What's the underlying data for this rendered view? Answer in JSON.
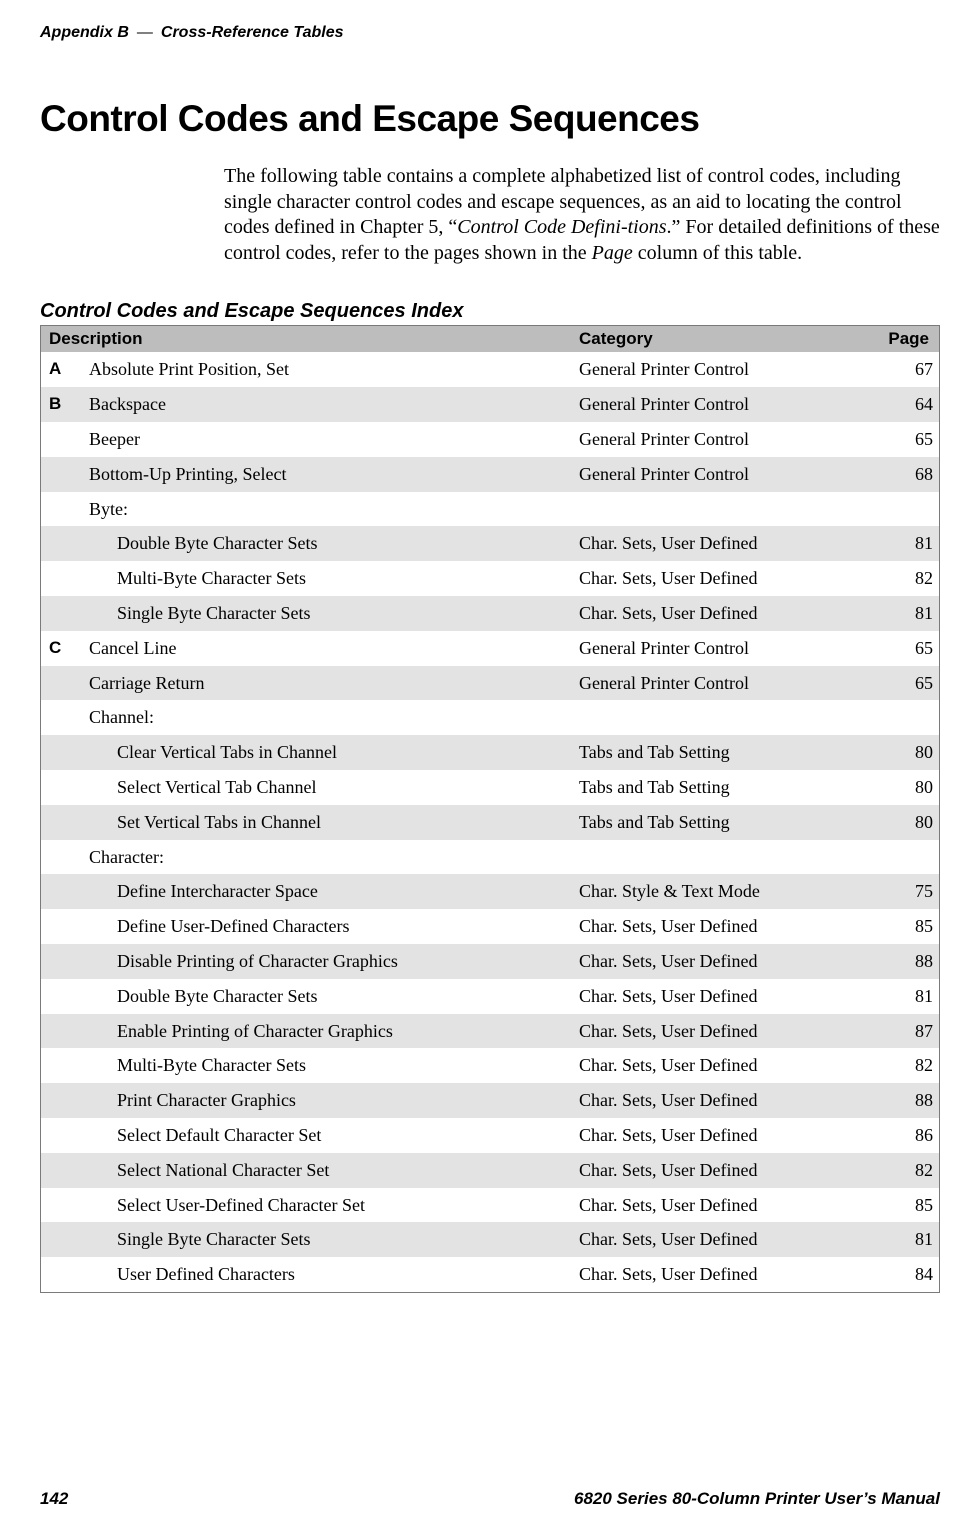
{
  "running_head": {
    "left": "Appendix  B",
    "right": "Cross-Reference Tables",
    "dash": "—"
  },
  "section_title": "Control Codes and Escape Sequences",
  "body_paragraph": {
    "pre": "The following table contains a complete alphabetized list of control codes, including single character control codes and escape sequences, as an aid to locating the control codes defined in Chapter 5, “",
    "ital1": "Control Code Defini-tions",
    "mid": ".” For detailed definitions of these control codes, refer to the pages shown in the ",
    "ital2": "Page",
    "post": " column of this table."
  },
  "table_title": "Control Codes and Escape Sequences Index",
  "headers": {
    "description": "Description",
    "category": "Category",
    "page": "Page"
  },
  "rows": [
    {
      "letter": "A",
      "desc": "Absolute Print Position, Set",
      "cat": "General Printer Control",
      "page": "67",
      "shaded": false,
      "indent": 0
    },
    {
      "letter": "B",
      "desc": "Backspace",
      "cat": "General Printer Control",
      "page": "64",
      "shaded": true,
      "indent": 0
    },
    {
      "letter": "",
      "desc": "Beeper",
      "cat": "General Printer Control",
      "page": "65",
      "shaded": false,
      "indent": 0
    },
    {
      "letter": "",
      "desc": "Bottom-Up Printing, Select",
      "cat": "General Printer Control",
      "page": "68",
      "shaded": true,
      "indent": 0
    },
    {
      "letter": "",
      "desc": "Byte:",
      "cat": "",
      "page": "",
      "shaded": false,
      "indent": 0
    },
    {
      "letter": "",
      "desc": "Double Byte Character Sets",
      "cat": "Char. Sets, User Defined",
      "page": "81",
      "shaded": true,
      "indent": 1
    },
    {
      "letter": "",
      "desc": "Multi-Byte Character Sets",
      "cat": "Char. Sets, User Defined",
      "page": "82",
      "shaded": false,
      "indent": 1
    },
    {
      "letter": "",
      "desc": "Single Byte Character Sets",
      "cat": "Char. Sets, User Defined",
      "page": "81",
      "shaded": true,
      "indent": 1
    },
    {
      "letter": "C",
      "desc": "Cancel Line",
      "cat": "General Printer Control",
      "page": "65",
      "shaded": false,
      "indent": 0
    },
    {
      "letter": "",
      "desc": "Carriage Return",
      "cat": "General Printer Control",
      "page": "65",
      "shaded": true,
      "indent": 0
    },
    {
      "letter": "",
      "desc": "Channel:",
      "cat": "",
      "page": "",
      "shaded": false,
      "indent": 0
    },
    {
      "letter": "",
      "desc": "Clear Vertical Tabs in Channel",
      "cat": "Tabs and Tab Setting",
      "page": "80",
      "shaded": true,
      "indent": 1
    },
    {
      "letter": "",
      "desc": "Select Vertical Tab Channel",
      "cat": "Tabs and Tab Setting",
      "page": "80",
      "shaded": false,
      "indent": 1
    },
    {
      "letter": "",
      "desc": "Set Vertical Tabs in Channel",
      "cat": "Tabs and Tab Setting",
      "page": "80",
      "shaded": true,
      "indent": 1
    },
    {
      "letter": "",
      "desc": "Character:",
      "cat": "",
      "page": "",
      "shaded": false,
      "indent": 0
    },
    {
      "letter": "",
      "desc": "Define Intercharacter Space",
      "cat": "Char. Style & Text Mode",
      "page": "75",
      "shaded": true,
      "indent": 1
    },
    {
      "letter": "",
      "desc": "Define User-Defined Characters",
      "cat": "Char. Sets, User Defined",
      "page": "85",
      "shaded": false,
      "indent": 1
    },
    {
      "letter": "",
      "desc": "Disable Printing of Character Graphics",
      "cat": "Char. Sets, User Defined",
      "page": "88",
      "shaded": true,
      "indent": 1
    },
    {
      "letter": "",
      "desc": "Double Byte Character Sets",
      "cat": "Char. Sets, User Defined",
      "page": "81",
      "shaded": false,
      "indent": 1
    },
    {
      "letter": "",
      "desc": "Enable Printing of Character Graphics",
      "cat": "Char. Sets, User Defined",
      "page": "87",
      "shaded": true,
      "indent": 1
    },
    {
      "letter": "",
      "desc": "Multi-Byte Character Sets",
      "cat": "Char. Sets, User Defined",
      "page": "82",
      "shaded": false,
      "indent": 1
    },
    {
      "letter": "",
      "desc": "Print Character Graphics",
      "cat": "Char. Sets, User Defined",
      "page": "88",
      "shaded": true,
      "indent": 1
    },
    {
      "letter": "",
      "desc": "Select Default Character Set",
      "cat": "Char. Sets, User Defined",
      "page": "86",
      "shaded": false,
      "indent": 1
    },
    {
      "letter": "",
      "desc": "Select National Character Set",
      "cat": "Char. Sets, User Defined",
      "page": "82",
      "shaded": true,
      "indent": 1
    },
    {
      "letter": "",
      "desc": "Select User-Defined Character Set",
      "cat": "Char. Sets, User Defined",
      "page": "85",
      "shaded": false,
      "indent": 1
    },
    {
      "letter": "",
      "desc": "Single Byte Character Sets",
      "cat": "Char. Sets, User Defined",
      "page": "81",
      "shaded": true,
      "indent": 1
    },
    {
      "letter": "",
      "desc": "User Defined Characters",
      "cat": "Char. Sets, User Defined",
      "page": "84",
      "shaded": false,
      "indent": 1
    }
  ],
  "footer": {
    "page_number": "142",
    "manual_title": "6820 Series 80-Column Printer User’s Manual"
  },
  "colors": {
    "header_bg": "#bdbdbd",
    "shaded_bg": "#e3e3e3",
    "border": "#7a7a7a",
    "text": "#000000",
    "background": "#ffffff"
  },
  "fonts": {
    "body": "Adobe Garamond Pro",
    "headings": "Myriad Pro"
  }
}
